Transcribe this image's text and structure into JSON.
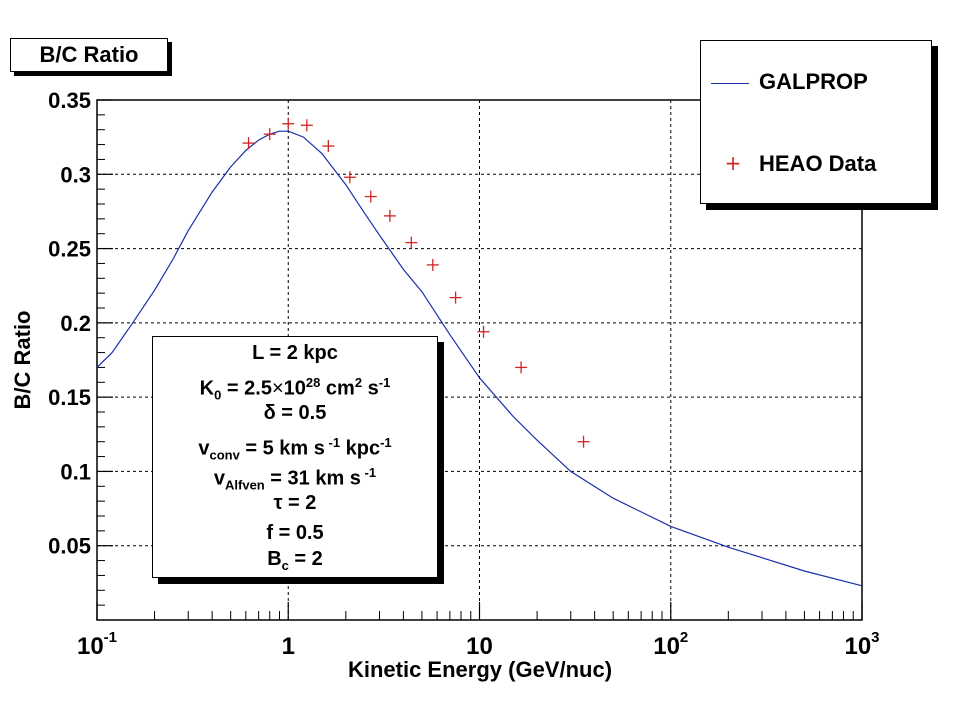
{
  "title": "B/C Ratio",
  "chart_data": {
    "type": "line",
    "xscale": "log",
    "xlim": [
      0.1,
      1000
    ],
    "ylim": [
      0.0,
      0.35
    ],
    "xlabel": "Kinetic Energy (GeV/nuc)",
    "ylabel": "B/C Ratio",
    "x_ticks": [
      {
        "value": 0.1,
        "base": "10",
        "exp": "-1"
      },
      {
        "value": 1,
        "base": "1",
        "exp": ""
      },
      {
        "value": 10,
        "base": "10",
        "exp": ""
      },
      {
        "value": 100,
        "base": "10",
        "exp": "2"
      },
      {
        "value": 1000,
        "base": "10",
        "exp": "3"
      }
    ],
    "y_ticks": [
      {
        "value": 0.05,
        "label": "0.05"
      },
      {
        "value": 0.1,
        "label": "0.1"
      },
      {
        "value": 0.15,
        "label": "0.15"
      },
      {
        "value": 0.2,
        "label": "0.2"
      },
      {
        "value": 0.25,
        "label": "0.25"
      },
      {
        "value": 0.3,
        "label": "0.3"
      },
      {
        "value": 0.35,
        "label": "0.35"
      }
    ],
    "grid": true,
    "series": [
      {
        "name": "GALPROP",
        "kind": "line",
        "color": "#1a2fa8",
        "x": [
          0.1,
          0.12,
          0.15,
          0.2,
          0.25,
          0.3,
          0.4,
          0.5,
          0.6,
          0.7,
          0.8,
          0.9,
          1.0,
          1.2,
          1.5,
          2.0,
          2.5,
          3.0,
          4.0,
          5.0,
          7.0,
          10,
          15,
          20,
          30,
          50,
          100,
          200,
          500,
          1000
        ],
        "y": [
          0.17,
          0.18,
          0.198,
          0.222,
          0.243,
          0.262,
          0.288,
          0.305,
          0.316,
          0.323,
          0.327,
          0.329,
          0.329,
          0.325,
          0.314,
          0.293,
          0.274,
          0.259,
          0.236,
          0.221,
          0.192,
          0.163,
          0.137,
          0.121,
          0.1,
          0.082,
          0.063,
          0.049,
          0.033,
          0.023
        ]
      },
      {
        "name": "HEAO Data",
        "kind": "marker",
        "color": "#d12424",
        "x": [
          0.62,
          0.8,
          1.0,
          1.25,
          1.62,
          2.1,
          2.7,
          3.4,
          4.4,
          5.7,
          7.5,
          10.5,
          16.5,
          35
        ],
        "y": [
          0.321,
          0.327,
          0.334,
          0.333,
          0.319,
          0.298,
          0.285,
          0.272,
          0.254,
          0.239,
          0.217,
          0.194,
          0.17,
          0.12
        ]
      }
    ]
  },
  "legend": {
    "items": [
      {
        "label": "GALPROP"
      },
      {
        "label": "HEAO Data"
      }
    ]
  },
  "params": {
    "L": "L = 2 kpc",
    "K0_a": "K",
    "K0_sub": "0",
    "K0_b": " = 2.5",
    "K0_times": "×",
    "K0_c": "10",
    "K0_exp": "28",
    "K0_d": " cm",
    "K0_exp2": "2",
    "K0_e": " s",
    "K0_exp3": "-1",
    "delta": "δ = 0.5",
    "vconv_a": "v",
    "vconv_sub": "conv",
    "vconv_b": " = 5 km s",
    "vconv_exp": " -1",
    "vconv_c": " kpc",
    "vconv_exp2": "-1",
    "valf_a": "v",
    "valf_sub": "Alfven",
    "valf_b": " = 31 km s",
    "valf_exp": " -1",
    "tau": "τ = 2",
    "f": "f = 0.5",
    "bc_a": "B",
    "bc_sub": "c",
    "bc_b": " = 2"
  }
}
